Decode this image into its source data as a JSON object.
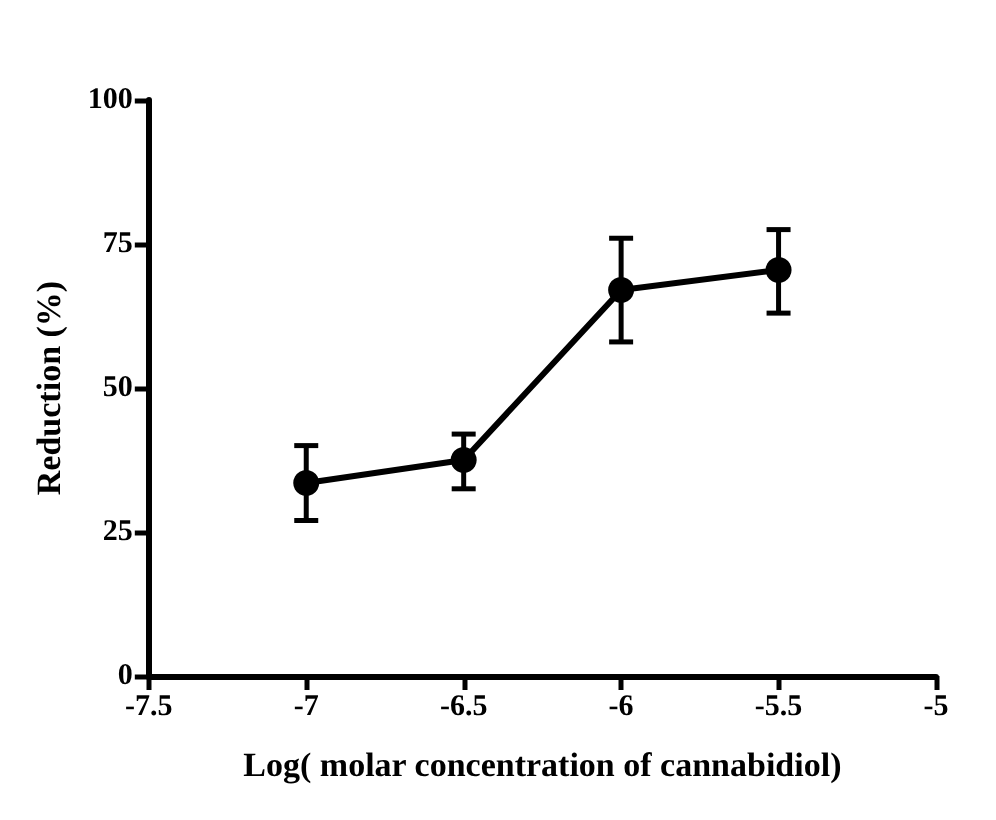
{
  "chart_data": {
    "type": "line",
    "xlabel": "Log( molar concentration of cannabidiol)",
    "ylabel": "Reduction (%)",
    "x": [
      -7,
      -6.5,
      -6,
      -5.5
    ],
    "series": [
      {
        "color": "#000000",
        "values": [
          33.5,
          37.5,
          67,
          70.5
        ],
        "errors": [
          [
            27,
            40
          ],
          [
            32.5,
            42
          ],
          [
            58,
            76
          ],
          [
            63,
            77.5
          ]
        ]
      }
    ],
    "xlim": [
      -7.5,
      -5
    ],
    "xticks": [
      -7.5,
      -7,
      -6.5,
      -6,
      -5.5,
      -5
    ],
    "ylim": [
      0,
      100
    ],
    "yticks": [
      0,
      25,
      50,
      75,
      100
    ],
    "grid": false,
    "marker": "circle",
    "line_style": "solid"
  }
}
